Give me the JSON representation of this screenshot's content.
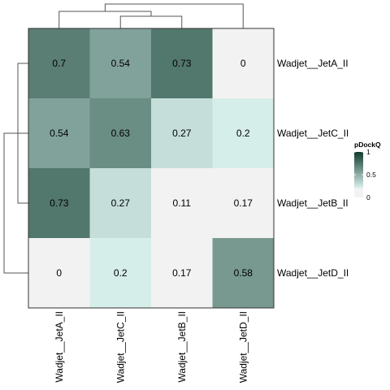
{
  "chart_data": {
    "type": "heatmap",
    "rows": [
      "Wadjet__JetA_II",
      "Wadjet__JetC_II",
      "Wadjet__JetB_II",
      "Wadjet__JetD_II"
    ],
    "columns": [
      "Wadjet__JetA_II",
      "Wadjet__JetC_II",
      "Wadjet__JetB_II",
      "Wadjet__JetD_II"
    ],
    "values": [
      [
        0.7,
        0.54,
        0.73,
        0
      ],
      [
        0.54,
        0.63,
        0.27,
        0.2
      ],
      [
        0.73,
        0.27,
        0.11,
        0.17
      ],
      [
        0,
        0.2,
        0.17,
        0.58
      ]
    ],
    "value_labels": [
      [
        "0.7",
        "0.54",
        "0.73",
        "0"
      ],
      [
        "0.54",
        "0.63",
        "0.27",
        "0.2"
      ],
      [
        "0.73",
        "0.27",
        "0.11",
        "0.17"
      ],
      [
        "0",
        "0.2",
        "0.17",
        "0.58"
      ]
    ],
    "color_scale": {
      "title": "pDockQ",
      "low_color": "#f2f2f2",
      "mid_color": "#d6eeea",
      "high_color": "#0f3b2d",
      "low_threshold": 0.2,
      "ticks": [
        "0",
        "0.5",
        "1"
      ],
      "tick_values": [
        0,
        0.5,
        1
      ],
      "range": [
        0,
        1
      ]
    },
    "row_dendrogram": true,
    "column_dendrogram": true
  }
}
